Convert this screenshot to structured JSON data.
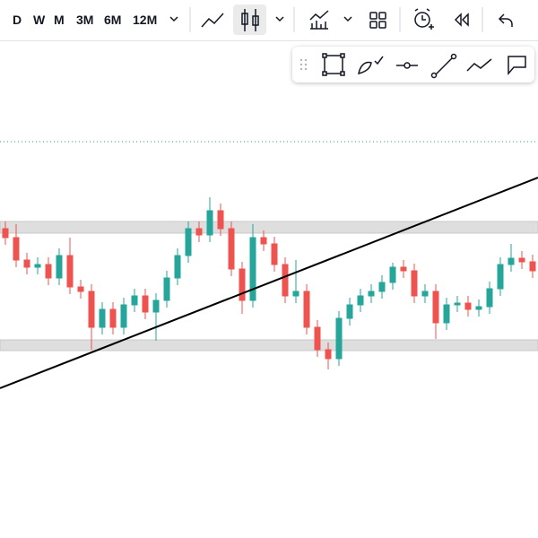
{
  "toolbar": {
    "timeframes": [
      "D",
      "W",
      "M",
      "3M",
      "6M",
      "12M"
    ]
  }
}
